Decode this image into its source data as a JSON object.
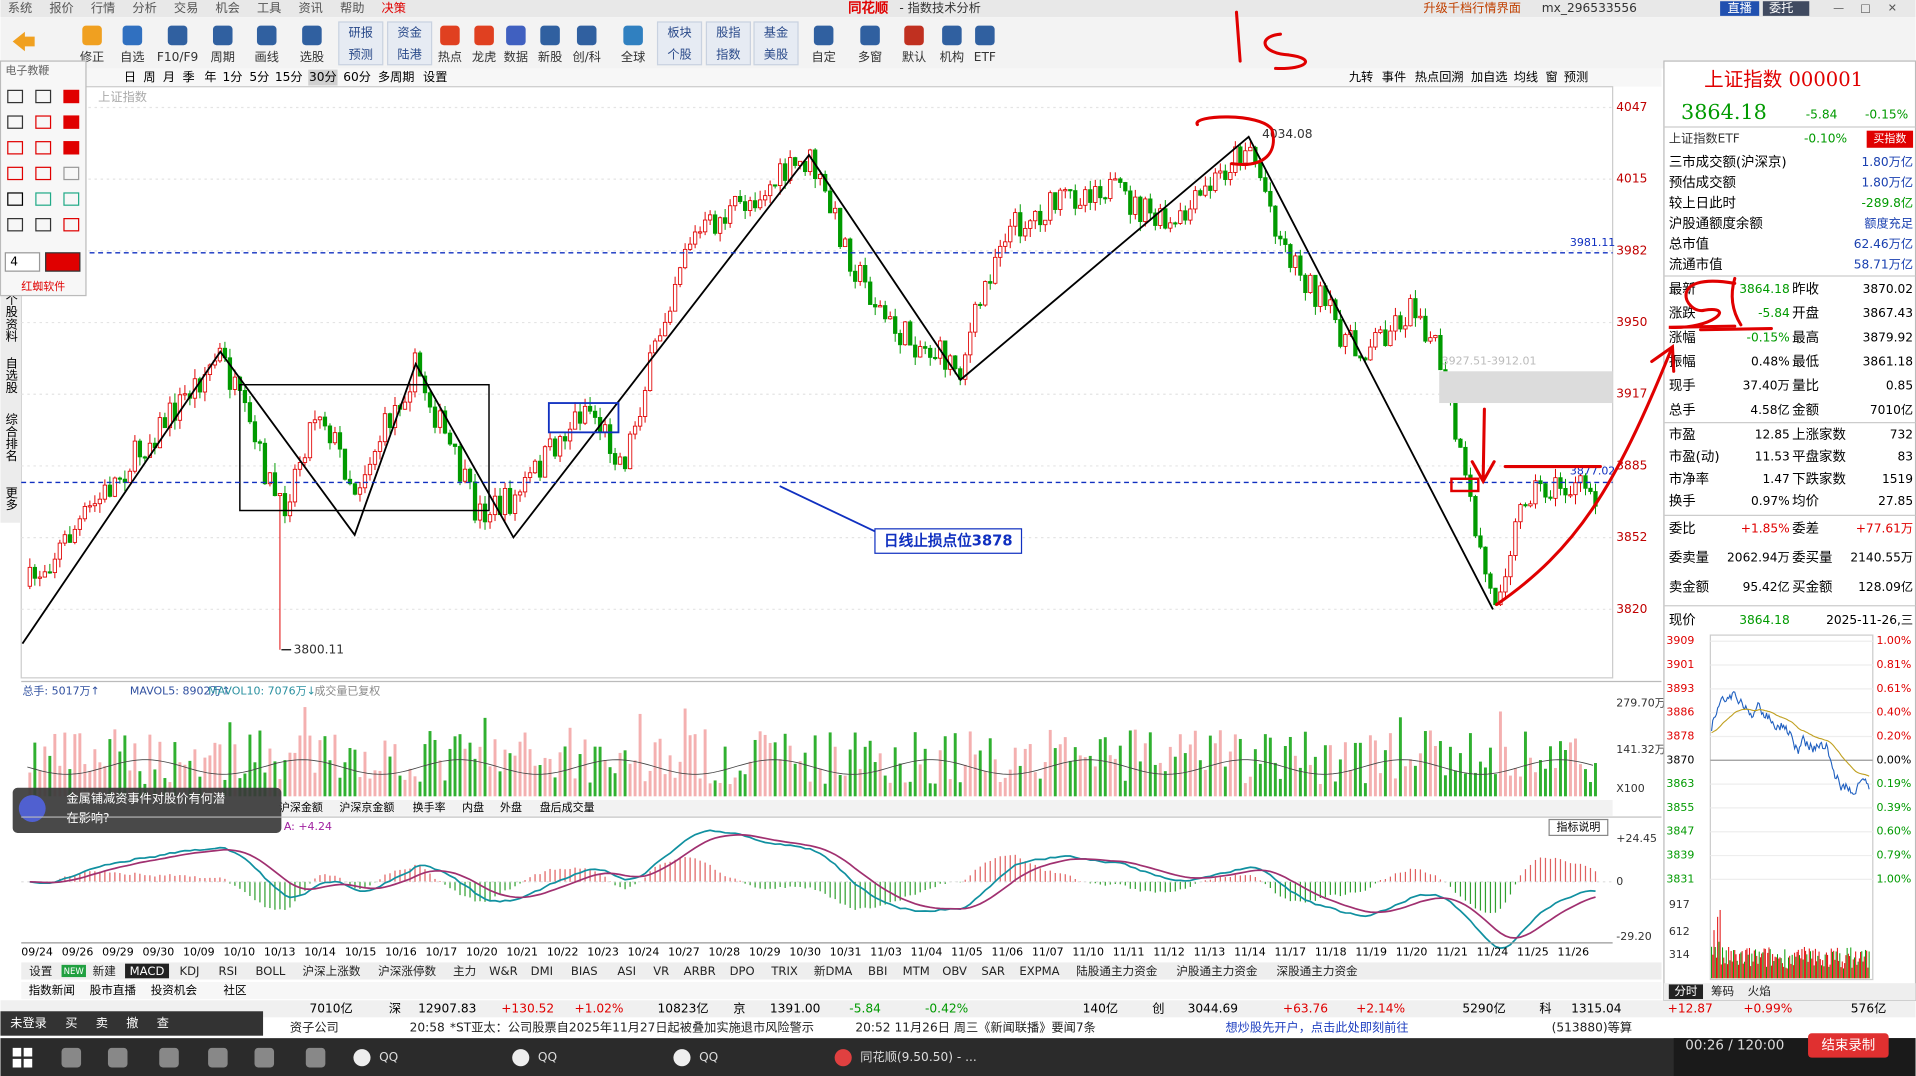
{
  "menu": [
    "系统",
    "报价",
    "行情",
    "分析",
    "交易",
    "机会",
    "工具",
    "资讯",
    "帮助",
    "决策"
  ],
  "logo": "同花顺",
  "window_title": "- 指数技术分析",
  "top_right": [
    "升级千档行情界面",
    "mx_296533556",
    "直播",
    "委托"
  ],
  "toolbar": [
    [
      "修正"
    ],
    [
      "自选"
    ],
    [
      "F10/F9"
    ],
    [
      "周期"
    ],
    [
      "画线"
    ],
    [
      "选股"
    ],
    [
      "研报",
      "预测"
    ],
    [
      "资金",
      "陆港"
    ],
    [
      "热点"
    ],
    [
      "龙虎"
    ],
    [
      "数据"
    ],
    [
      "新股"
    ],
    [
      "创/科"
    ],
    [
      "全球"
    ],
    [
      "板块",
      "个股"
    ],
    [
      "股指",
      "指数"
    ],
    [
      "基金",
      "美股"
    ],
    [
      "自定"
    ],
    [
      "多窗"
    ],
    [
      "默认"
    ],
    [
      "机构"
    ],
    [
      "ETF"
    ]
  ],
  "periods": [
    "日",
    "周",
    "月",
    "季",
    "年",
    "1分",
    "5分",
    "15分",
    "30分",
    "60分",
    "多周期",
    "设置"
  ],
  "chart_tools": [
    "九转",
    "事件",
    "热点回溯",
    "加自选",
    "均线",
    "窗",
    "预测"
  ],
  "drawing_panel": {
    "title": "电子教鞭",
    "size": "4",
    "brand": "红蜘软件"
  },
  "side_tabs": [
    "个股资料",
    "自选股",
    "综合排名",
    "更多"
  ],
  "chart_name": "上证指数",
  "price_axis": [
    "4047",
    "4015",
    "3982",
    "3950",
    "3917",
    "3885",
    "3852",
    "3820"
  ],
  "annotations": {
    "high": "4034.08",
    "low": "3800.11",
    "line_upper": "3981.11",
    "gap": "3927.51-3912.01",
    "line_lower": "3877.02",
    "stop": "日线止损点位3878"
  },
  "volume_legend": [
    "总手: 5017万↑",
    "MAVOL5: 8902万↑",
    "MAVOL10: 7076万↓",
    "成交量已复权"
  ],
  "volume_axis": [
    "279.70万",
    "141.32万",
    "X100"
  ],
  "sub_tabs": [
    "沪深金额",
    "沪深京金额",
    "换手率",
    "内盘",
    "外盘",
    "盘后成交量"
  ],
  "popup": [
    "金属铺减资事件对股价有何潜",
    "在影响?"
  ],
  "macd_label": "A: +4.24",
  "indicator_help": "指标说明",
  "macd_axis": [
    "+24.45",
    "0",
    "-29.20"
  ],
  "dates": [
    "09/24",
    "09/26",
    "09/29",
    "09/30",
    "10/09",
    "10/10",
    "10/13",
    "10/14",
    "10/15",
    "10/16",
    "10/17",
    "10/20",
    "10/21",
    "10/22",
    "10/23",
    "10/24",
    "10/27",
    "10/28",
    "10/29",
    "10/30",
    "10/31",
    "11/03",
    "11/04",
    "11/05",
    "11/06",
    "11/07",
    "11/10",
    "11/11",
    "11/12",
    "11/13",
    "11/14",
    "11/17",
    "11/18",
    "11/19",
    "11/20",
    "11/21",
    "11/24",
    "11/25",
    "11/26"
  ],
  "new_badge": "NEW",
  "indicator_tabs": [
    "设置",
    "新建",
    "MACD",
    "KDJ",
    "RSI",
    "BOLL",
    "沪深上涨数",
    "沪深涨停数",
    "主力",
    "W&R",
    "DMI",
    "BIAS",
    "ASI",
    "VR",
    "ARBR",
    "DPO",
    "TRIX",
    "新DMA",
    "BBI",
    "MTM",
    "OBV",
    "SAR",
    "EXPMA",
    "陆股通主力资金",
    "沪股通主力资金",
    "深股通主力资金"
  ],
  "news_tabs": [
    "指数新闻",
    "股市直播",
    "投资机会",
    "社区"
  ],
  "status": [
    "7010亿",
    "深",
    "12907.83",
    "+130.52",
    "+1.02%",
    "10823亿",
    "京",
    "1391.00",
    "-5.84",
    "-0.42%",
    "140亿",
    "创",
    "3044.69",
    "+63.76",
    "+2.14%",
    "5290亿",
    "科",
    "1315.04",
    "+12.87",
    "+0.99%",
    "576亿"
  ],
  "ticker": [
    "资子公司",
    "20:58",
    "*ST亚太：公司股票自2025年11月27日起被叠加实施退市风险警示",
    "20:52 11月26日 周三《新闻联播》要闻7条",
    "想炒股先开户，点击此处即刻前往",
    "(513880)等算"
  ],
  "trade_bar": [
    "未登录",
    "买",
    "卖",
    "撤",
    "查"
  ],
  "taskbar": [
    "QQ",
    "QQ",
    "QQ",
    "同花顺(9.50.50) - ..."
  ],
  "recorder": {
    "time": "00:26 / 120:00",
    "stop": "结束录制"
  },
  "quote": {
    "title": "上证指数 000001",
    "price": "3864.18",
    "change": "-5.84",
    "pct": "-0.15%",
    "etf": [
      "上证指数ETF",
      "-0.10%",
      "买指数"
    ],
    "rows": [
      [
        "三市成交额(沪深京)",
        "1.80万亿"
      ],
      [
        "预估成交额",
        "1.80万亿"
      ],
      [
        "较上日此时",
        "-289.8亿"
      ],
      [
        "沪股通额度余额",
        "额度充足"
      ],
      [
        "总市值",
        "62.46万亿"
      ],
      [
        "流通市值",
        "58.71万亿"
      ]
    ],
    "grid": [
      [
        "最新",
        "3864.18",
        "昨收",
        "3870.02"
      ],
      [
        "涨跌",
        "-5.84",
        "开盘",
        "3867.43"
      ],
      [
        "涨幅",
        "-0.15%",
        "最高",
        "3879.92"
      ],
      [
        "振幅",
        "0.48%",
        "最低",
        "3861.18"
      ],
      [
        "现手",
        "37.40万",
        "量比",
        "0.85"
      ],
      [
        "总手",
        "4.58亿",
        "金额",
        "7010亿"
      ]
    ],
    "grid2": [
      [
        "市盈",
        "12.85",
        "上涨家数",
        "732"
      ],
      [
        "市盈(动)",
        "11.53",
        "平盘家数",
        "83"
      ],
      [
        "市净率",
        "1.47",
        "下跌家数",
        "1519"
      ],
      [
        "换手",
        "0.97%",
        "均价",
        "27.85"
      ]
    ],
    "grid3": [
      [
        "委比",
        "+1.85%",
        "委差",
        "+77.61万"
      ],
      [
        "委卖量",
        "2062.94万",
        "委买量",
        "2140.55万"
      ],
      [
        "卖金额",
        "95.42亿",
        "买金额",
        "128.09亿"
      ]
    ],
    "now": [
      "现价",
      "3864.18",
      "2025-11-26,三"
    ],
    "intraday_left": [
      "3909",
      "3901",
      "3893",
      "3886",
      "3878",
      "3870",
      "3863",
      "3855",
      "3847",
      "3839",
      "3831"
    ],
    "intraday_right": [
      "1.00%",
      "0.81%",
      "0.61%",
      "0.40%",
      "0.20%",
      "0.00%",
      "0.19%",
      "0.39%",
      "0.60%",
      "0.79%",
      "1.00%"
    ],
    "intraday_vol": [
      "917",
      "612",
      "314"
    ],
    "tabs": [
      "分时",
      "筹码",
      "火焰"
    ]
  }
}
